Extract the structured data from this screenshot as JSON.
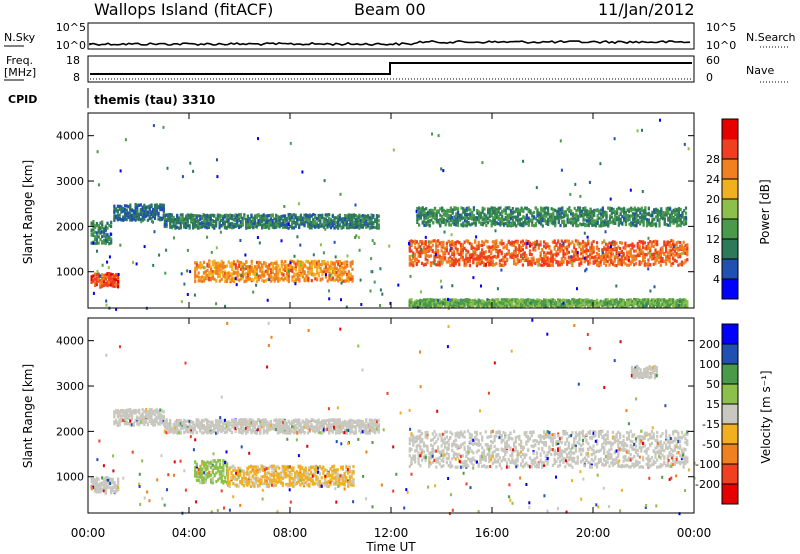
{
  "header": {
    "station": "Wallops Island (fitACF)",
    "beam": "Beam 00",
    "date": "11/Jan/2012"
  },
  "noise_panel": {
    "left_label": "N.Sky",
    "right_label": "N.Search",
    "left_ticks": [
      "10^5",
      "10^0"
    ],
    "right_ticks": [
      "10^5",
      "10^0"
    ]
  },
  "freq_panel": {
    "left_label_1": "Freq.",
    "left_label_2": "[MHz]",
    "right_label": "Nave",
    "left_ticks": [
      "18",
      "8"
    ],
    "right_ticks": [
      "60",
      "0"
    ]
  },
  "cpid": {
    "label": "CPID",
    "value": "themis (tau) 3310"
  },
  "x_axis": {
    "label": "Time UT",
    "ticks": [
      "00:00",
      "04:00",
      "08:00",
      "12:00",
      "16:00",
      "20:00",
      "00:00"
    ]
  },
  "colors": {
    "power": [
      "#0000ff",
      "#2050b0",
      "#2d7a5a",
      "#4a9a4a",
      "#8cc04a",
      "#f0b020",
      "#f08020",
      "#ee4020",
      "#e60000"
    ],
    "velocity": [
      "#e60000",
      "#f04020",
      "#f08020",
      "#f0b020",
      "#c8c8c0",
      "#8cc04a",
      "#4a9a4a",
      "#2050b0",
      "#0000ff"
    ]
  },
  "chart_data": [
    {
      "type": "heatmap",
      "title": "",
      "xlabel": "",
      "ylabel": "Slant Range [km]",
      "x_range": [
        0,
        24
      ],
      "y_range": [
        200,
        4500
      ],
      "y_ticks": [
        "1000",
        "2000",
        "3000",
        "4000"
      ],
      "colorbar": {
        "label": "Power [dB]",
        "ticks": [
          "4",
          "8",
          "12",
          "16",
          "20",
          "24",
          "28"
        ],
        "range": [
          0,
          32
        ]
      },
      "features": [
        {
          "t_start": 0.1,
          "t_end": 0.9,
          "range_center": 1850,
          "range_width": 500,
          "value": 10
        },
        {
          "t_start": 0.1,
          "t_end": 1.2,
          "range_center": 800,
          "range_width": 300,
          "value": 26
        },
        {
          "t_start": 1.0,
          "t_end": 3.0,
          "range_center": 2300,
          "range_width": 350,
          "value": 7
        },
        {
          "t_start": 4.2,
          "t_end": 10.5,
          "range_center": 1000,
          "range_width": 450,
          "value": 22
        },
        {
          "t_start": 3.0,
          "t_end": 11.5,
          "range_center": 2100,
          "range_width": 300,
          "value": 9
        },
        {
          "t_start": 12.7,
          "t_end": 23.7,
          "range_center": 1400,
          "range_width": 550,
          "value": 25
        },
        {
          "t_start": 13.0,
          "t_end": 23.7,
          "range_center": 2200,
          "range_width": 400,
          "value": 10
        },
        {
          "t_start": 12.7,
          "t_end": 23.7,
          "range_center": 300,
          "range_width": 150,
          "value": 14
        }
      ]
    },
    {
      "type": "heatmap",
      "title": "",
      "xlabel": "Time UT",
      "ylabel": "Slant Range [km]",
      "x_range": [
        0,
        24
      ],
      "y_range": [
        200,
        4500
      ],
      "y_ticks": [
        "1000",
        "2000",
        "3000",
        "4000"
      ],
      "colorbar": {
        "label": "Velocity [m s⁻¹]",
        "ticks": [
          "-200",
          "-100",
          "-50",
          "-15",
          "15",
          "50",
          "100",
          "200"
        ],
        "range": [
          -250,
          250
        ]
      },
      "features": [
        {
          "t_start": 0.1,
          "t_end": 1.2,
          "range_center": 800,
          "range_width": 350,
          "value": 0
        },
        {
          "t_start": 1.0,
          "t_end": 3.0,
          "range_center": 2300,
          "range_width": 350,
          "value": 0
        },
        {
          "t_start": 4.2,
          "t_end": 5.5,
          "range_center": 1100,
          "range_width": 500,
          "value": 40
        },
        {
          "t_start": 5.5,
          "t_end": 10.5,
          "range_center": 1000,
          "range_width": 450,
          "value": -35
        },
        {
          "t_start": 3.0,
          "t_end": 11.5,
          "range_center": 2100,
          "range_width": 300,
          "value": 0
        },
        {
          "t_start": 12.7,
          "t_end": 23.7,
          "range_center": 1600,
          "range_width": 800,
          "value": 0
        },
        {
          "t_start": 21.5,
          "t_end": 22.5,
          "range_center": 3300,
          "range_width": 250,
          "value": 0
        }
      ]
    }
  ]
}
